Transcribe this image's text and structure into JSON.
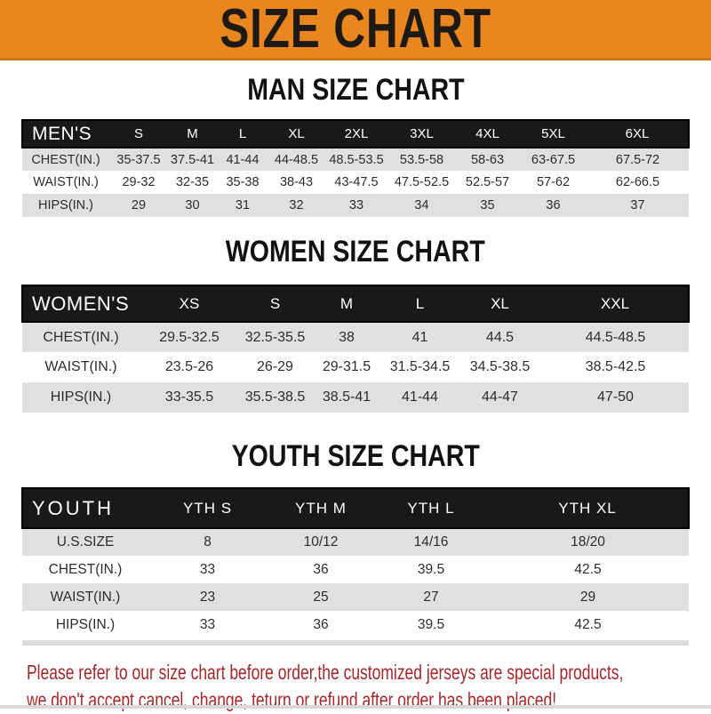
{
  "banner": {
    "title": "SIZE CHART"
  },
  "colors": {
    "banner_bg": "#EA861F",
    "header_bar_bg": "#191919",
    "row_alt_gray": "#E0E0E0",
    "disclaimer_red": "#A5282B"
  },
  "sections": [
    {
      "id": "men",
      "heading": "MAN SIZE CHART",
      "corner_label": "MEN'S",
      "columns": [
        "S",
        "M",
        "L",
        "XL",
        "2XL",
        "3XL",
        "4XL",
        "5XL",
        "6XL"
      ],
      "rows": [
        {
          "label": "CHEST(IN.)",
          "values": [
            "35-37.5",
            "37.5-41",
            "41-44",
            "44-48.5",
            "48.5-53.5",
            "53.5-58",
            "58-63",
            "63-67.5",
            "67.5-72"
          ]
        },
        {
          "label": "WAIST(IN.)",
          "values": [
            "29-32",
            "32-35",
            "35-38",
            "38-43",
            "43-47.5",
            "47.5-52.5",
            "52.5-57",
            "57-62",
            "62-66.5"
          ]
        },
        {
          "label": "HIPS(IN.)",
          "values": [
            "29",
            "30",
            "31",
            "32",
            "33",
            "34",
            "35",
            "36",
            "37"
          ]
        }
      ]
    },
    {
      "id": "women",
      "heading": "WOMEN SIZE CHART",
      "corner_label": "WOMEN'S",
      "columns": [
        "XS",
        "S",
        "M",
        "L",
        "XL",
        "XXL"
      ],
      "rows": [
        {
          "label": "CHEST(IN.)",
          "values": [
            "29.5-32.5",
            "32.5-35.5",
            "38",
            "41",
            "44.5",
            "44.5-48.5"
          ]
        },
        {
          "label": "WAIST(IN.)",
          "values": [
            "23.5-26",
            "26-29",
            "29-31.5",
            "31.5-34.5",
            "34.5-38.5",
            "38.5-42.5"
          ]
        },
        {
          "label": "HIPS(IN.)",
          "values": [
            "33-35.5",
            "35.5-38.5",
            "38.5-41",
            "41-44",
            "44-47",
            "47-50"
          ]
        }
      ]
    },
    {
      "id": "youth",
      "heading": "YOUTH SIZE CHART",
      "corner_label": "YOUTH",
      "columns": [
        "YTH S",
        "YTH M",
        "YTH L",
        "YTH XL"
      ],
      "rows": [
        {
          "label": "U.S.SIZE",
          "values": [
            "8",
            "10/12",
            "14/16",
            "18/20"
          ]
        },
        {
          "label": "CHEST(IN.)",
          "values": [
            "33",
            "36",
            "39.5",
            "42.5"
          ]
        },
        {
          "label": "WAIST(IN.)",
          "values": [
            "23",
            "25",
            "27",
            "29"
          ]
        },
        {
          "label": "HIPS(IN.)",
          "values": [
            "33",
            "36",
            "39.5",
            "42.5"
          ]
        }
      ]
    }
  ],
  "footer": {
    "line1": "Please refer to our size chart before order,the customized jerseys are special products,",
    "line2": "we don't accept cancel, change, teturn or refund after order has been placed!"
  }
}
